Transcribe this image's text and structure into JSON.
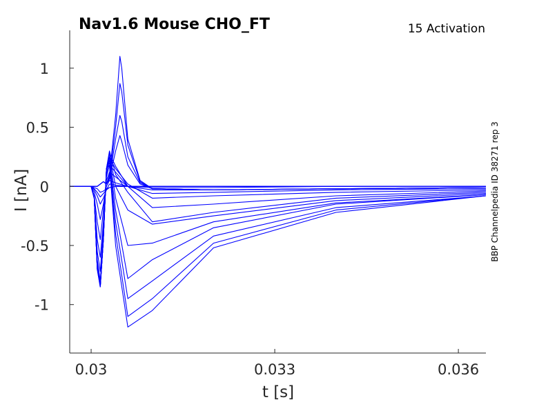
{
  "chart_data": {
    "type": "line",
    "title": "Nav1.6  Mouse  CHO_FT",
    "subtitle": "15  Activation",
    "side_label": "BBP Channelpedia ID 38271 rep 3",
    "xlabel": "t [s]",
    "ylabel": "I [nA]",
    "xlim": [
      0.02965,
      0.03645
    ],
    "ylim": [
      -1.41,
      1.32
    ],
    "xticks": [
      0.03,
      0.033,
      0.036
    ],
    "xtick_labels": [
      "0.03",
      "0.033",
      "0.036"
    ],
    "yticks": [
      1,
      0.5,
      0,
      -0.5,
      -1
    ],
    "ytick_labels": [
      "1",
      "0.5",
      "0",
      "-0.5",
      "-1"
    ],
    "grid": false,
    "line_color": "#0000ff",
    "series": [
      {
        "x": [
          0.02965,
          0.0298,
          0.03,
          0.03005,
          0.0301,
          0.03015,
          0.0302,
          0.03025,
          0.0303,
          0.0304,
          0.0306,
          0.031,
          0.032,
          0.034,
          0.03645
        ],
        "y": [
          0.0,
          0.0,
          0.0,
          -0.01,
          -0.02,
          -0.05,
          -0.04,
          -0.02,
          -0.01,
          0.0,
          0.0,
          0.0,
          0.0,
          0.0,
          0.0
        ]
      },
      {
        "x": [
          0.02965,
          0.0298,
          0.03,
          0.03005,
          0.0301,
          0.03015,
          0.0302,
          0.03025,
          0.0303,
          0.0304,
          0.0306,
          0.031,
          0.032,
          0.034,
          0.03645
        ],
        "y": [
          0.0,
          0.0,
          0.0,
          -0.02,
          -0.05,
          -0.09,
          -0.06,
          -0.03,
          -0.01,
          0.0,
          0.0,
          0.0,
          0.0,
          0.0,
          0.0
        ]
      },
      {
        "x": [
          0.02965,
          0.0298,
          0.03,
          0.03005,
          0.0301,
          0.03015,
          0.0302,
          0.03025,
          0.0303,
          0.0304,
          0.0306,
          0.031,
          0.032,
          0.034,
          0.03645
        ],
        "y": [
          0.0,
          0.0,
          0.0,
          -0.03,
          -0.08,
          -0.15,
          -0.1,
          -0.03,
          0.02,
          0.01,
          0.0,
          0.0,
          0.0,
          0.0,
          0.0
        ]
      },
      {
        "x": [
          0.02965,
          0.0298,
          0.03,
          0.03005,
          0.0301,
          0.03015,
          0.0302,
          0.03025,
          0.0303,
          0.0304,
          0.0306,
          0.031,
          0.032,
          0.034,
          0.03645
        ],
        "y": [
          0.0,
          0.0,
          0.0,
          -0.05,
          -0.15,
          -0.28,
          -0.15,
          0.0,
          0.05,
          0.03,
          0.0,
          -0.01,
          -0.01,
          0.0,
          0.0
        ]
      },
      {
        "x": [
          0.02965,
          0.0298,
          0.03,
          0.03005,
          0.0301,
          0.03015,
          0.0302,
          0.03025,
          0.0303,
          0.0304,
          0.0306,
          0.031,
          0.032,
          0.034,
          0.03645
        ],
        "y": [
          0.0,
          0.0,
          0.0,
          -0.08,
          -0.3,
          -0.45,
          -0.2,
          0.05,
          0.12,
          0.08,
          0.0,
          -0.03,
          -0.03,
          -0.02,
          -0.01
        ]
      },
      {
        "x": [
          0.02965,
          0.0298,
          0.03,
          0.03005,
          0.0301,
          0.03015,
          0.0302,
          0.03025,
          0.0303,
          0.0304,
          0.0306,
          0.031,
          0.032,
          0.034,
          0.03645
        ],
        "y": [
          0.0,
          0.0,
          0.0,
          -0.1,
          -0.45,
          -0.6,
          -0.3,
          0.08,
          0.18,
          0.12,
          0.0,
          -0.06,
          -0.05,
          -0.03,
          -0.02
        ]
      },
      {
        "x": [
          0.02965,
          0.0298,
          0.03,
          0.03005,
          0.0301,
          0.03015,
          0.0302,
          0.03025,
          0.0303,
          0.0304,
          0.0306,
          0.031,
          0.032,
          0.034,
          0.03645
        ],
        "y": [
          0.0,
          0.0,
          0.0,
          -0.1,
          -0.55,
          -0.72,
          -0.35,
          0.1,
          0.24,
          0.15,
          0.02,
          -0.1,
          -0.08,
          -0.05,
          -0.03
        ]
      },
      {
        "x": [
          0.02965,
          0.0298,
          0.03,
          0.03005,
          0.0301,
          0.03015,
          0.0302,
          0.03025,
          0.0303,
          0.0304,
          0.0306,
          0.031,
          0.032,
          0.034,
          0.03645
        ],
        "y": [
          0.0,
          0.0,
          0.0,
          -0.1,
          -0.62,
          -0.8,
          -0.4,
          0.12,
          0.28,
          0.17,
          0.0,
          -0.18,
          -0.15,
          -0.08,
          -0.04
        ]
      },
      {
        "x": [
          0.02965,
          0.0298,
          0.03,
          0.03005,
          0.0301,
          0.03015,
          0.0302,
          0.03025,
          0.0303,
          0.0304,
          0.0306,
          0.031,
          0.032,
          0.034,
          0.03645
        ],
        "y": [
          0.0,
          0.0,
          0.0,
          -0.1,
          -0.65,
          -0.82,
          -0.42,
          0.15,
          0.3,
          0.1,
          -0.05,
          -0.3,
          -0.22,
          -0.1,
          -0.05
        ]
      },
      {
        "x": [
          0.02965,
          0.0298,
          0.03,
          0.03005,
          0.0301,
          0.03015,
          0.0302,
          0.03025,
          0.0303,
          0.0304,
          0.0306,
          0.031,
          0.032,
          0.034,
          0.03645
        ],
        "y": [
          0.0,
          0.0,
          0.0,
          -0.1,
          -0.68,
          -0.84,
          -0.45,
          0.15,
          0.28,
          0.0,
          -0.2,
          -0.32,
          -0.25,
          -0.12,
          -0.06
        ]
      },
      {
        "x": [
          0.02965,
          0.0298,
          0.03,
          0.03005,
          0.0301,
          0.03015,
          0.0302,
          0.03025,
          0.0303,
          0.0304,
          0.0306,
          0.031,
          0.032,
          0.034,
          0.03645
        ],
        "y": [
          0.0,
          0.0,
          0.0,
          -0.1,
          -0.7,
          -0.85,
          -0.45,
          0.15,
          0.25,
          -0.1,
          -0.5,
          -0.48,
          -0.3,
          -0.14,
          -0.07
        ]
      },
      {
        "x": [
          0.02965,
          0.0298,
          0.03,
          0.03005,
          0.0301,
          0.03015,
          0.0302,
          0.03025,
          0.0303,
          0.0304,
          0.0306,
          0.031,
          0.032,
          0.034,
          0.03645
        ],
        "y": [
          0.0,
          0.0,
          0.0,
          -0.1,
          -0.7,
          -0.85,
          -0.45,
          0.15,
          0.22,
          -0.2,
          -0.78,
          -0.62,
          -0.35,
          -0.15,
          -0.07
        ]
      },
      {
        "x": [
          0.02965,
          0.0298,
          0.03,
          0.03005,
          0.0301,
          0.03015,
          0.0302,
          0.03025,
          0.0303,
          0.0304,
          0.0306,
          0.031,
          0.032,
          0.034,
          0.03645
        ],
        "y": [
          0.0,
          0.0,
          0.0,
          -0.1,
          -0.7,
          -0.85,
          -0.45,
          0.15,
          0.2,
          -0.3,
          -0.95,
          -0.8,
          -0.42,
          -0.18,
          -0.08
        ]
      },
      {
        "x": [
          0.02965,
          0.0298,
          0.03,
          0.03005,
          0.0301,
          0.03015,
          0.0302,
          0.03025,
          0.0303,
          0.0304,
          0.0306,
          0.031,
          0.032,
          0.034,
          0.03645
        ],
        "y": [
          0.0,
          0.0,
          0.0,
          -0.1,
          -0.7,
          -0.85,
          -0.45,
          0.15,
          0.18,
          -0.4,
          -1.1,
          -0.95,
          -0.48,
          -0.2,
          -0.08
        ]
      },
      {
        "x": [
          0.02965,
          0.0298,
          0.03,
          0.03005,
          0.0301,
          0.03015,
          0.0302,
          0.03025,
          0.0303,
          0.0304,
          0.0306,
          0.031,
          0.032,
          0.034,
          0.03645
        ],
        "y": [
          0.0,
          0.0,
          0.0,
          -0.1,
          -0.7,
          -0.85,
          -0.45,
          0.15,
          0.18,
          -0.5,
          -1.19,
          -1.05,
          -0.52,
          -0.22,
          -0.08
        ]
      },
      {
        "x": [
          0.02965,
          0.0298,
          0.03,
          0.0301,
          0.03015,
          0.0302,
          0.03025,
          0.0303,
          0.0304,
          0.03047,
          0.0305,
          0.0306,
          0.0308,
          0.031,
          0.032,
          0.034,
          0.03645
        ],
        "y": [
          0.0,
          0.0,
          0.0,
          0.0,
          0.02,
          0.04,
          0.02,
          0.1,
          0.6,
          1.1,
          1.0,
          0.4,
          0.05,
          -0.02,
          -0.03,
          -0.02,
          -0.01
        ]
      },
      {
        "x": [
          0.02965,
          0.0298,
          0.03,
          0.0301,
          0.03015,
          0.0302,
          0.03025,
          0.0303,
          0.0304,
          0.03047,
          0.0305,
          0.0306,
          0.0308,
          0.031,
          0.032,
          0.034,
          0.03645
        ],
        "y": [
          0.0,
          0.0,
          0.0,
          0.0,
          0.02,
          0.04,
          0.02,
          0.08,
          0.5,
          0.87,
          0.8,
          0.35,
          0.04,
          -0.02,
          -0.03,
          -0.02,
          -0.01
        ]
      },
      {
        "x": [
          0.02965,
          0.0298,
          0.03,
          0.0301,
          0.03015,
          0.0302,
          0.03025,
          0.0303,
          0.0304,
          0.03047,
          0.0305,
          0.0306,
          0.0308,
          0.031,
          0.032,
          0.034,
          0.03645
        ],
        "y": [
          0.0,
          0.0,
          0.0,
          0.0,
          0.02,
          0.04,
          0.02,
          0.07,
          0.4,
          0.6,
          0.55,
          0.25,
          0.03,
          -0.02,
          -0.03,
          -0.02,
          -0.01
        ]
      },
      {
        "x": [
          0.02965,
          0.0298,
          0.03,
          0.0301,
          0.03015,
          0.0302,
          0.03025,
          0.0303,
          0.0304,
          0.03047,
          0.0305,
          0.0306,
          0.0308,
          0.031,
          0.032,
          0.034,
          0.03645
        ],
        "y": [
          0.0,
          0.0,
          0.0,
          0.0,
          0.02,
          0.04,
          0.02,
          0.06,
          0.3,
          0.43,
          0.38,
          0.18,
          0.02,
          -0.02,
          -0.03,
          -0.02,
          -0.01
        ]
      }
    ]
  }
}
